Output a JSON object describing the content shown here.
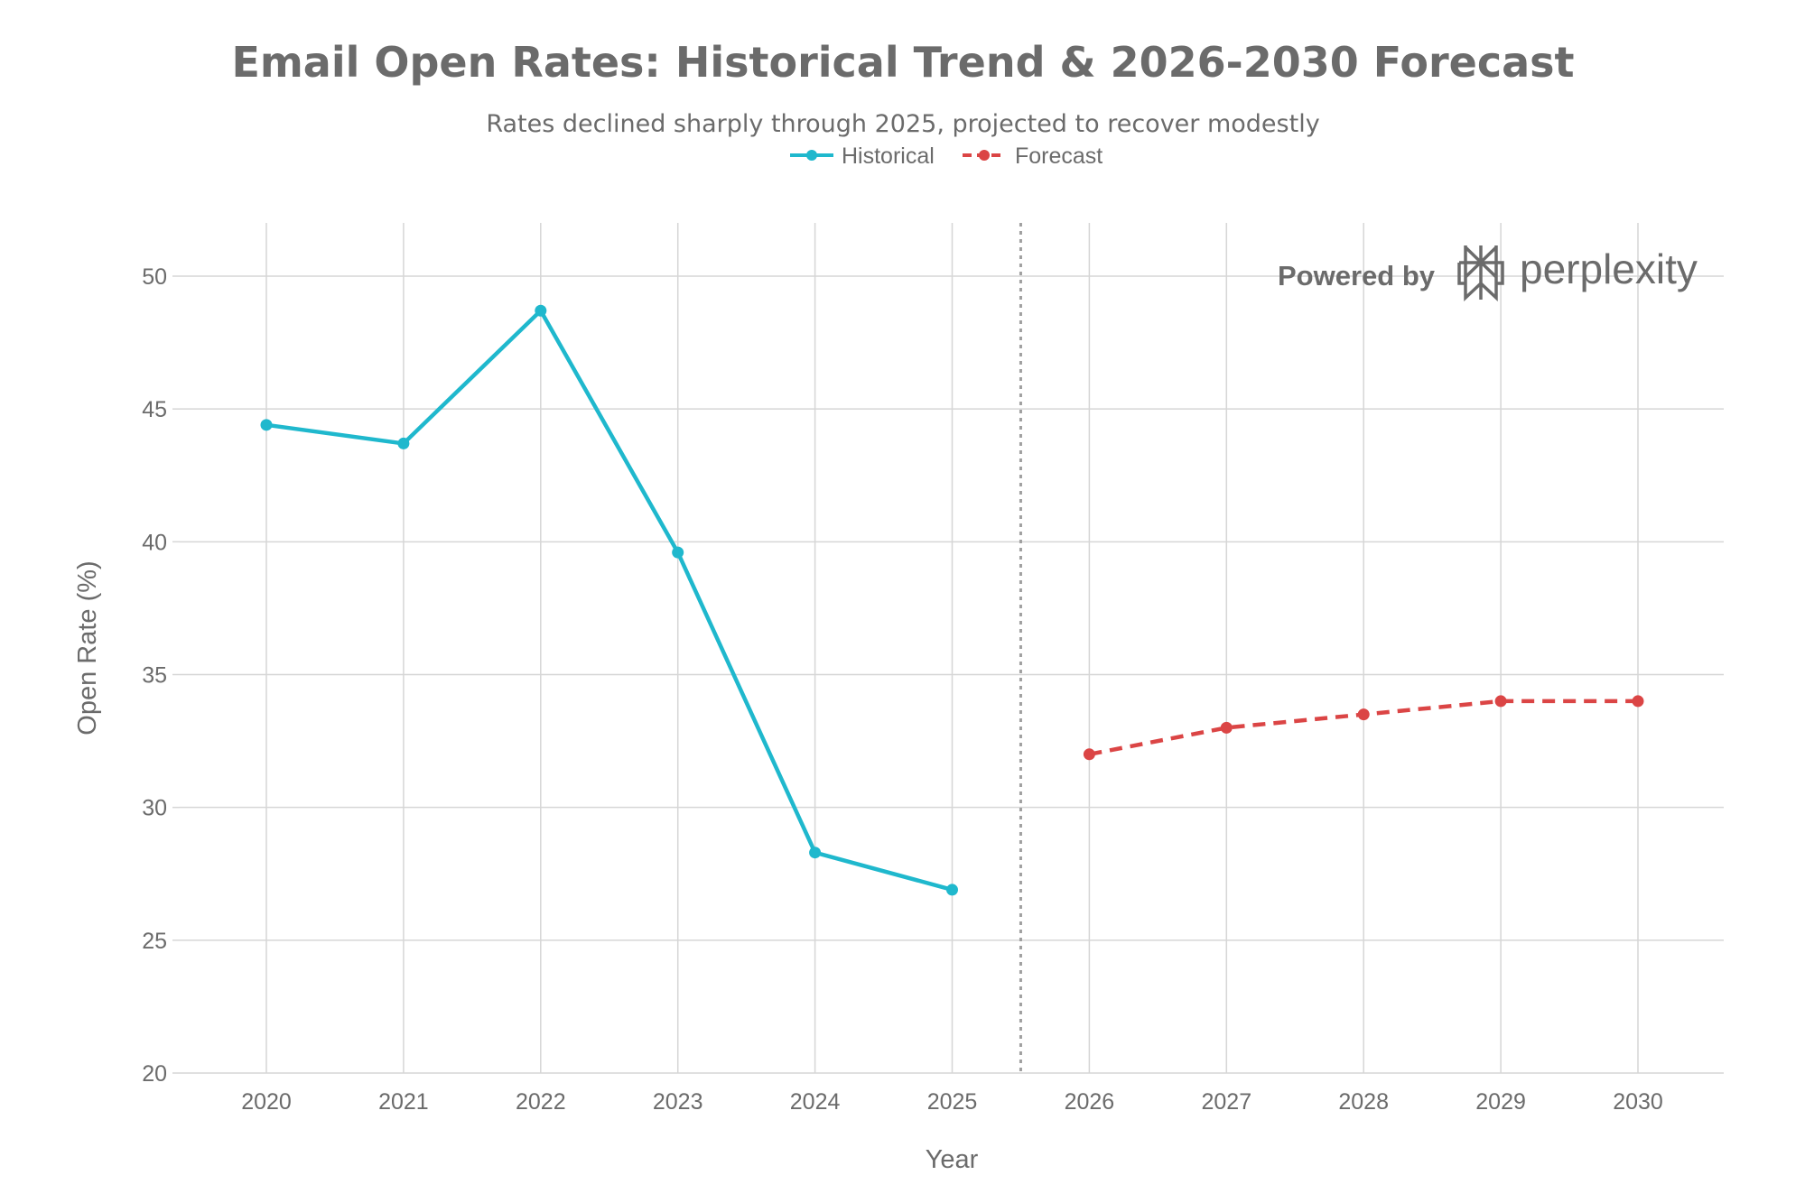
{
  "chart_data": {
    "type": "line",
    "title": "Email Open Rates: Historical Trend & 2026-2030 Forecast",
    "subtitle": "Rates declined sharply through 2025, projected to recover modestly",
    "xlabel": "Year",
    "ylabel": "Open Rate (%)",
    "ylim": [
      20,
      52
    ],
    "xlim": [
      2019.35,
      2030.62
    ],
    "yticks": [
      20,
      25,
      30,
      35,
      40,
      45,
      50
    ],
    "xticks": [
      2020,
      2021,
      2022,
      2023,
      2024,
      2025,
      2026,
      2027,
      2028,
      2029,
      2030
    ],
    "grid": true,
    "legend_placement": "top-center",
    "divider_x": 2025.5,
    "series": [
      {
        "name": "Historical",
        "color": "#1fb8cd",
        "style": "solid",
        "x": [
          2020,
          2021,
          2022,
          2023,
          2024,
          2025
        ],
        "y": [
          44.4,
          43.7,
          48.7,
          39.6,
          28.3,
          26.9
        ]
      },
      {
        "name": "Forecast",
        "color": "#db4545",
        "style": "dashed",
        "x": [
          2026,
          2027,
          2028,
          2029,
          2030
        ],
        "y": [
          32.0,
          33.0,
          33.5,
          34.0,
          34.0
        ]
      }
    ]
  },
  "watermark": {
    "prefix": "Powered by",
    "brand": "perplexity"
  }
}
